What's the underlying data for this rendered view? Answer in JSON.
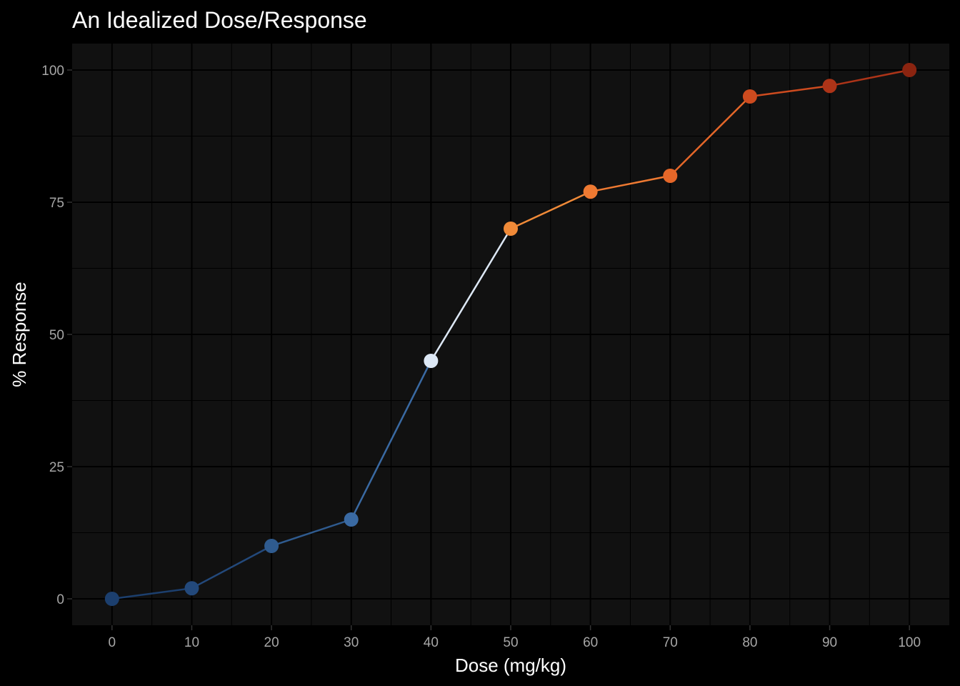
{
  "chart_data": {
    "type": "line",
    "title": "An Idealized Dose/Response",
    "xlabel": "Dose (mg/kg)",
    "ylabel": "% Response",
    "x": [
      0,
      10,
      20,
      30,
      40,
      50,
      60,
      70,
      80,
      90,
      100
    ],
    "y": [
      0,
      2,
      10,
      15,
      45,
      70,
      77,
      80,
      95,
      97,
      100
    ],
    "point_colors": [
      "#1c3f6e",
      "#23497b",
      "#2f5b8f",
      "#3a6aa3",
      "#dde8f5",
      "#f08a38",
      "#ef7a32",
      "#e56729",
      "#cd4b1f",
      "#ad3418",
      "#8b2410"
    ],
    "xlim": [
      -5,
      105
    ],
    "ylim": [
      -5,
      105
    ],
    "x_ticks": [
      0,
      10,
      20,
      30,
      40,
      50,
      60,
      70,
      80,
      90,
      100
    ],
    "y_ticks": [
      0,
      25,
      50,
      75,
      100
    ],
    "x_tick_labels": [
      "0",
      "10",
      "20",
      "30",
      "40",
      "50",
      "60",
      "70",
      "80",
      "90",
      "100"
    ],
    "y_tick_labels": [
      "0",
      "25",
      "50",
      "75",
      "100"
    ],
    "grid": true,
    "legend": "none",
    "background": "#000000",
    "panel_background": "#111111"
  }
}
